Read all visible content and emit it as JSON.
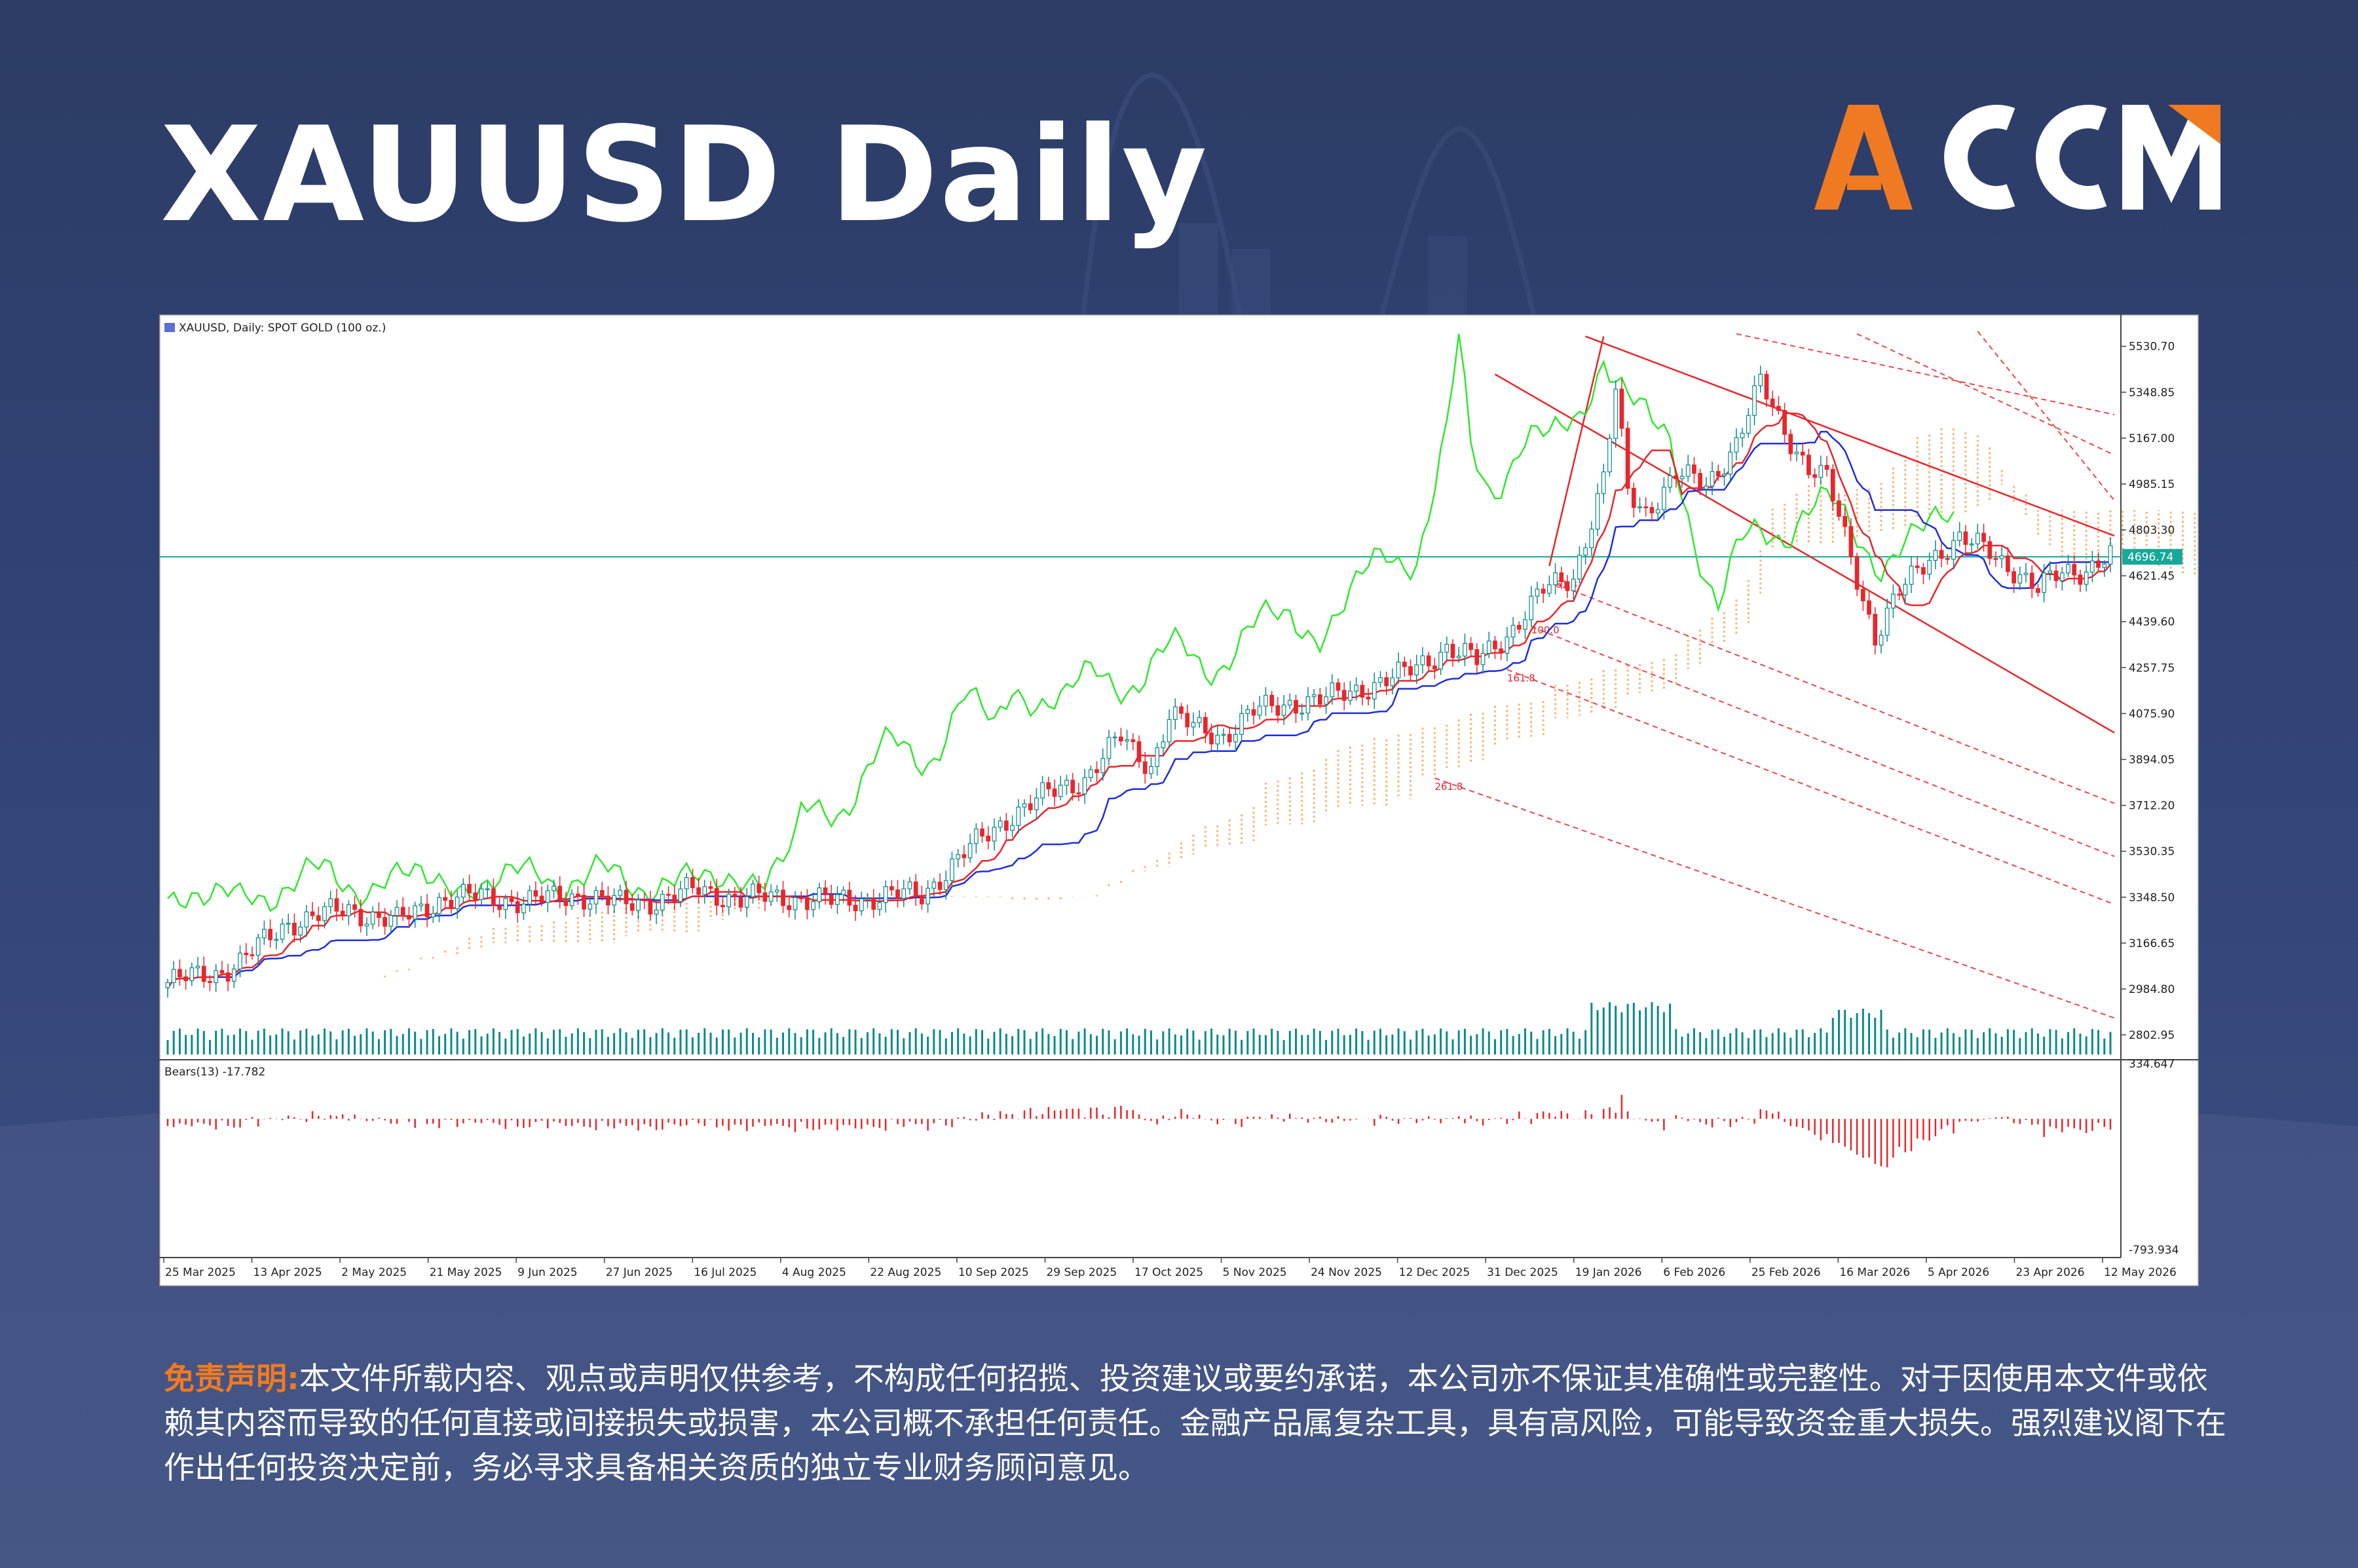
{
  "page": {
    "title": "XAUUSD Daily",
    "brand": "ACCM"
  },
  "colors": {
    "bg_dark": "#2c3c66",
    "accent_orange": "#f07a22",
    "white": "#ffffff",
    "price_up": "#0a8a8a",
    "price_down": "#e8262c",
    "tenkan": "#e8262c",
    "kijun": "#1f2ed8",
    "chikou": "#2ee82e",
    "kumo": "#f2a25a",
    "channel": "#e8262c",
    "current_price_line": "#18a89a"
  },
  "chart_header": "XAUUSD, Daily:  SPOT GOLD (100 oz.)",
  "disclaimer": {
    "heading": "免责声明:",
    "body": "本文件所载内容、观点或声明仅供参考，不构成任何招揽、投资建议或要约承诺，本公司亦不保证其准确性或完整性。对于因使用本文件或依赖其内容而导致的任何直接或间接损失或损害，本公司概不承担任何责任。金融产品属复杂工具，具有高风险，可能导致资金重大损失。强烈建议阁下在作出任何投资决定前，务必寻求具备相关资质的独立专业财务顾问意见。"
  },
  "chart_data": {
    "type": "line",
    "symbol": "XAUUSD",
    "timeframe": "Daily",
    "y_ticks": [
      "5530.70",
      "5348.85",
      "5167.00",
      "4985.15",
      "4803.30",
      "4621.45",
      "4439.60",
      "4257.75",
      "4075.90",
      "3894.05",
      "3712.20",
      "3530.35",
      "3348.50",
      "3166.65",
      "2984.80",
      "2802.95"
    ],
    "ylim": [
      2720,
      5600
    ],
    "x_ticks": [
      "25 Mar 2025",
      "13 Apr 2025",
      "2 May 2025",
      "21 May 2025",
      "9 Jun 2025",
      "27 Jun 2025",
      "16 Jul 2025",
      "4 Aug 2025",
      "22 Aug 2025",
      "10 Sep 2025",
      "29 Sep 2025",
      "17 Oct 2025",
      "5 Nov 2025",
      "24 Nov 2025",
      "12 Dec 2025",
      "31 Dec 2025",
      "19 Jan 2026",
      "6 Feb 2026",
      "25 Feb 2026",
      "16 Mar 2026",
      "5 Apr 2026",
      "23 Apr 2026",
      "12 May 2026"
    ],
    "current_price": "4696.74",
    "current_price_value": 4696.74,
    "close_anchors": [
      [
        0,
        3010
      ],
      [
        8,
        3050
      ],
      [
        12,
        3090
      ],
      [
        20,
        3250
      ],
      [
        30,
        3300
      ],
      [
        38,
        3250
      ],
      [
        45,
        3340
      ],
      [
        52,
        3350
      ],
      [
        60,
        3330
      ],
      [
        68,
        3360
      ],
      [
        75,
        3320
      ],
      [
        82,
        3340
      ],
      [
        88,
        3380
      ],
      [
        95,
        3340
      ],
      [
        102,
        3350
      ],
      [
        110,
        3330
      ],
      [
        118,
        3350
      ],
      [
        125,
        3360
      ],
      [
        132,
        3520
      ],
      [
        140,
        3680
      ],
      [
        148,
        3780
      ],
      [
        152,
        3820
      ],
      [
        158,
        3980
      ],
      [
        160,
        3930
      ],
      [
        163,
        3870
      ],
      [
        166,
        4070
      ],
      [
        170,
        4020
      ],
      [
        175,
        3990
      ],
      [
        180,
        4080
      ],
      [
        186,
        4120
      ],
      [
        192,
        4130
      ],
      [
        198,
        4180
      ],
      [
        205,
        4230
      ],
      [
        212,
        4340
      ],
      [
        217,
        4280
      ],
      [
        222,
        4390
      ],
      [
        228,
        4560
      ],
      [
        233,
        4620
      ],
      [
        238,
        5000
      ],
      [
        240,
        5350
      ],
      [
        242,
        4950
      ],
      [
        245,
        4880
      ],
      [
        250,
        5020
      ],
      [
        255,
        4980
      ],
      [
        260,
        5150
      ],
      [
        264,
        5380
      ],
      [
        268,
        5200
      ],
      [
        272,
        5050
      ],
      [
        275,
        5000
      ],
      [
        279,
        4700
      ],
      [
        283,
        4380
      ],
      [
        287,
        4550
      ],
      [
        292,
        4700
      ],
      [
        297,
        4760
      ],
      [
        302,
        4720
      ],
      [
        306,
        4650
      ],
      [
        310,
        4560
      ],
      [
        314,
        4640
      ],
      [
        318,
        4650
      ],
      [
        322,
        4696
      ]
    ],
    "indicators": [
      {
        "name": "Tenkan-sen",
        "color": "#e8262c"
      },
      {
        "name": "Kijun-sen",
        "color": "#1f2ed8"
      },
      {
        "name": "Chikou Span",
        "color": "#2ee82e"
      },
      {
        "name": "Kumo",
        "color": "#f2a25a"
      }
    ],
    "fibo_channel_labels": [
      "61.8",
      "100.0",
      "161.8",
      "261.8"
    ],
    "volume_panel": true,
    "subwindow": {
      "indicator": "Bears(13)",
      "value": "-17.782",
      "label": "Bears(13) -17.782",
      "y_ticks": [
        "334.647",
        "-793.934"
      ],
      "ylim": [
        -793.934,
        334.647
      ]
    }
  }
}
